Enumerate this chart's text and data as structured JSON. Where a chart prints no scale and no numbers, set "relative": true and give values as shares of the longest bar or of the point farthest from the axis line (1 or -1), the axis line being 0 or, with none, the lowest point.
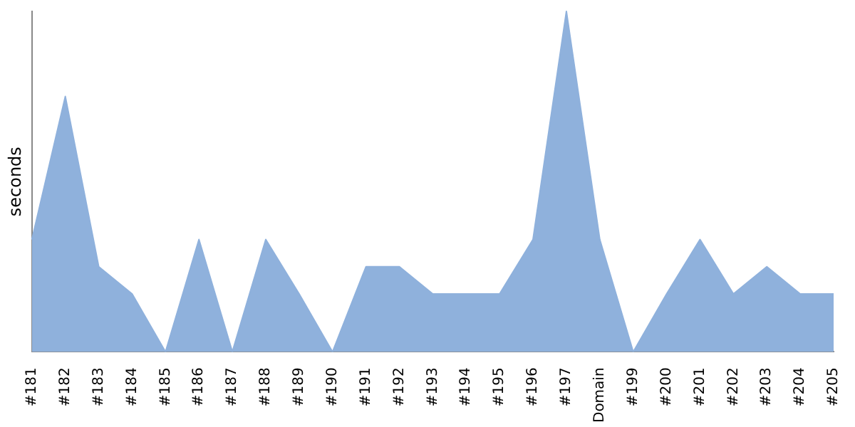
{
  "chart_data": {
    "type": "area",
    "ylabel": "seconds",
    "relative": true,
    "grid": false,
    "legend": false,
    "categories": [
      "#181",
      "#182",
      "#183",
      "#184",
      "#185",
      "#186",
      "#187",
      "#188",
      "#189",
      "#190",
      "#191",
      "#192",
      "#193",
      "#194",
      "#195",
      "#196",
      "#197",
      "Domain",
      "#199",
      "#200",
      "#201",
      "#202",
      "#203",
      "#204",
      "#205"
    ],
    "series": [
      {
        "color": "#8fb1dc",
        "values": [
          0.33,
          0.75,
          0.25,
          0.17,
          0,
          0.33,
          0,
          0.33,
          0.17,
          0,
          0.25,
          0.25,
          0.17,
          0.17,
          0.17,
          0.33,
          1,
          0.33,
          0,
          0.17,
          0.33,
          0.17,
          0.25,
          0.17,
          0.17
        ]
      }
    ]
  }
}
